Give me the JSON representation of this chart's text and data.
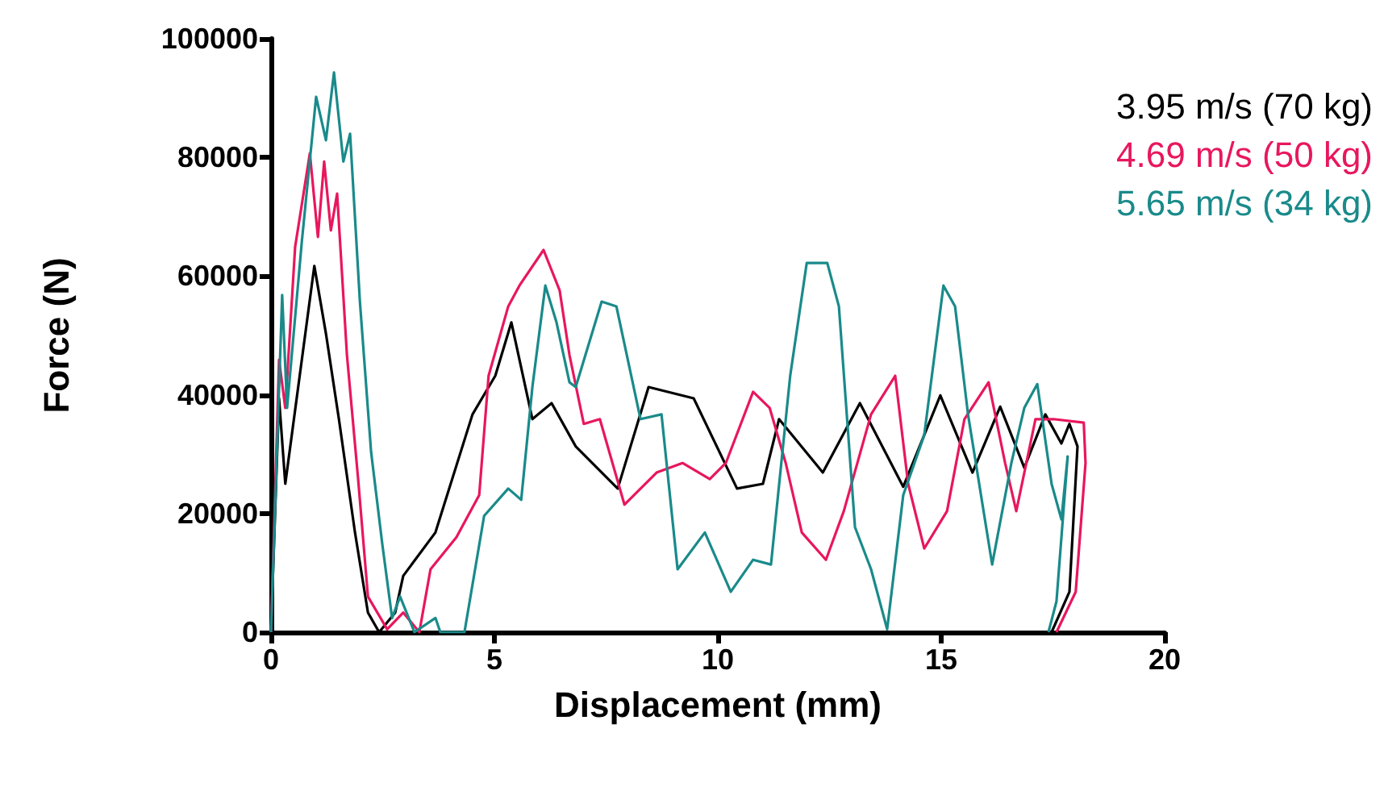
{
  "chart_data": {
    "type": "line",
    "xlabel": "Displacement (mm)",
    "ylabel": "Force (N)",
    "xlim": [
      0,
      20
    ],
    "xticks": [
      0,
      5,
      10,
      15,
      20
    ],
    "ylim": [
      0,
      100000
    ],
    "yticks": [
      0,
      20000,
      40000,
      60000,
      80000,
      100000
    ],
    "grid": false,
    "legend": "top right",
    "marker": "none",
    "line_style": "solid",
    "series": [
      {
        "name": "3.95 m/s (70 kg)",
        "color": "#000000",
        "x": [
          0,
          0.18,
          0.32,
          0.97,
          1.23,
          1.52,
          1.88,
          2.17,
          2.42,
          2.78,
          2.96,
          3.68,
          4.51,
          5.02,
          5.38,
          5.85,
          6.28,
          6.82,
          7.76,
          8.45,
          9.46,
          10.43,
          11.01,
          11.37,
          12.35,
          13.18,
          14.15,
          14.98,
          15.7,
          16.32,
          16.86,
          17.33,
          17.69,
          17.87,
          18.05,
          17.87,
          17.47
        ],
        "values": [
          0,
          39400,
          25000,
          61700,
          50300,
          35900,
          16800,
          3300,
          0,
          3300,
          9500,
          16800,
          36700,
          43200,
          52200,
          35900,
          38600,
          31300,
          24200,
          41300,
          39400,
          24200,
          25000,
          35900,
          26900,
          38600,
          24500,
          39900,
          26900,
          38000,
          27700,
          36700,
          31800,
          35100,
          31300,
          6800,
          0
        ]
      },
      {
        "name": "4.69 m/s (50 kg)",
        "color": "#e8175d",
        "x": [
          0,
          0.18,
          0.32,
          0.54,
          0.87,
          1.05,
          1.19,
          1.34,
          1.48,
          1.7,
          1.95,
          2.17,
          2.6,
          2.96,
          3.32,
          3.57,
          4.15,
          4.66,
          4.87,
          5.31,
          5.56,
          6.1,
          6.46,
          6.68,
          7,
          7.36,
          7.91,
          8.63,
          9.21,
          9.82,
          10.18,
          10.79,
          11.16,
          11.52,
          11.88,
          12.42,
          12.82,
          13.43,
          13.97,
          14.26,
          14.62,
          15.13,
          15.52,
          16.06,
          16.43,
          16.68,
          17.11,
          17.51,
          18.19,
          18.23,
          18.01,
          17.58
        ],
        "values": [
          0,
          45900,
          37800,
          64900,
          80700,
          66600,
          79300,
          67700,
          73900,
          46700,
          25800,
          6000,
          500,
          3300,
          0,
          10600,
          16000,
          23100,
          43200,
          54900,
          58400,
          64400,
          57600,
          46700,
          35100,
          35900,
          21500,
          26900,
          28500,
          25800,
          28500,
          40500,
          37800,
          28500,
          16800,
          12200,
          20400,
          36700,
          43200,
          25000,
          14100,
          20400,
          35900,
          42100,
          28500,
          20400,
          35900,
          35900,
          35300,
          28500,
          6800,
          0
        ]
      },
      {
        "name": "5.65 m/s (34 kg)",
        "color": "#1a8a8a",
        "x": [
          0,
          0.25,
          0.36,
          0.69,
          1.01,
          1.23,
          1.41,
          1.62,
          1.77,
          1.99,
          2.24,
          2.49,
          2.71,
          2.89,
          3.21,
          3.68,
          3.79,
          4.33,
          4.77,
          5.31,
          5.6,
          5.85,
          6.14,
          6.39,
          6.68,
          6.82,
          7.4,
          7.73,
          8.27,
          8.74,
          9.1,
          9.71,
          10.29,
          10.79,
          11.19,
          11.62,
          11.99,
          12.45,
          12.71,
          13.07,
          13.43,
          13.79,
          14.15,
          14.62,
          15.05,
          15.31,
          15.6,
          16.14,
          16.57,
          16.86,
          17.15,
          17.47,
          17.69,
          17.83,
          17.58,
          17.4
        ],
        "values": [
          0,
          56800,
          37800,
          65800,
          90200,
          82900,
          94300,
          79300,
          84000,
          55700,
          30400,
          14900,
          2400,
          6000,
          0,
          2400,
          0,
          0,
          19600,
          24200,
          22300,
          41300,
          58400,
          52200,
          42100,
          41300,
          55700,
          54900,
          35900,
          36700,
          10600,
          16800,
          6800,
          12200,
          11400,
          43200,
          62200,
          62200,
          54900,
          17700,
          10600,
          500,
          23100,
          33200,
          58400,
          54900,
          36700,
          11400,
          28500,
          37800,
          41800,
          25000,
          19000,
          29600,
          5200,
          0
        ]
      }
    ]
  }
}
